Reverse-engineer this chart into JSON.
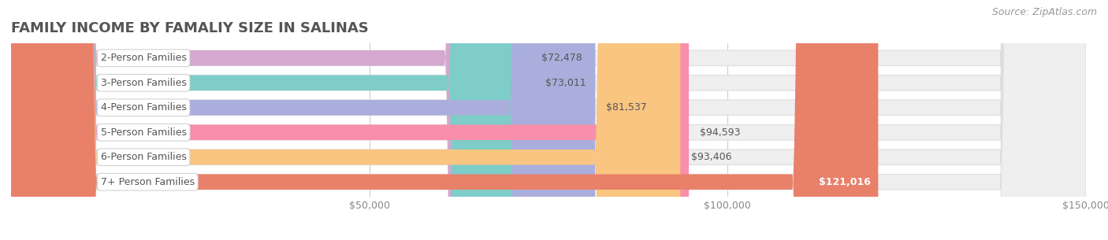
{
  "title": "FAMILY INCOME BY FAMALIY SIZE IN SALINAS",
  "source": "Source: ZipAtlas.com",
  "categories": [
    "2-Person Families",
    "3-Person Families",
    "4-Person Families",
    "5-Person Families",
    "6-Person Families",
    "7+ Person Families"
  ],
  "values": [
    72478,
    73011,
    81537,
    94593,
    93406,
    121016
  ],
  "bar_colors": [
    "#d4a8cf",
    "#7ecdc8",
    "#a9aedd",
    "#f78faa",
    "#f9c580",
    "#e8806a"
  ],
  "bar_bg_color": "#efefef",
  "label_bg_color": "#ffffff",
  "label_text_color": "#555555",
  "value_text_color": "#555555",
  "value_label_color_last": "#ffffff",
  "title_color": "#555555",
  "source_color": "#999999",
  "background_color": "#ffffff",
  "xlim": [
    0,
    150000
  ],
  "xticks": [
    0,
    50000,
    100000,
    150000
  ],
  "xtick_labels": [
    "",
    "$50,000",
    "$100,000",
    "$150,000"
  ],
  "bar_height": 0.62,
  "title_fontsize": 13,
  "label_fontsize": 9,
  "value_fontsize": 9,
  "source_fontsize": 9,
  "tick_fontsize": 9
}
